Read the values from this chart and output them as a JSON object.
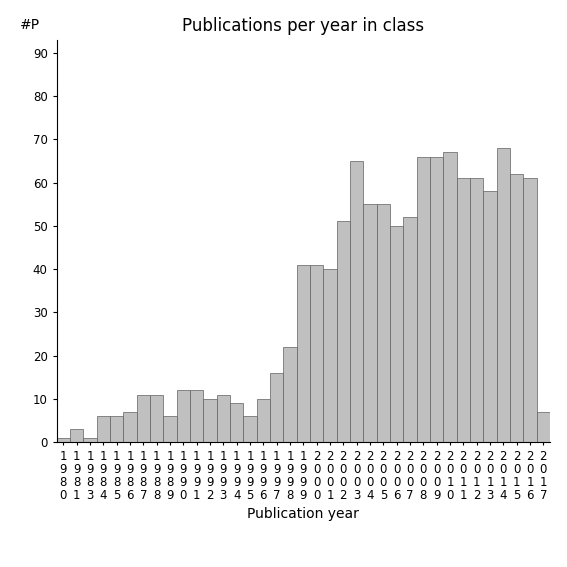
{
  "title": "Publications per year in class",
  "xlabel": "Publication year",
  "ylabel": "#P",
  "years": [
    "1980",
    "1981",
    "1983",
    "1984",
    "1985",
    "1986",
    "1987",
    "1988",
    "1989",
    "1990",
    "1991",
    "1992",
    "1993",
    "1994",
    "1995",
    "1996",
    "1997",
    "1998",
    "1999",
    "2000",
    "2001",
    "2002",
    "2003",
    "2004",
    "2005",
    "2006",
    "2007",
    "2008",
    "2009",
    "2010",
    "2011",
    "2012",
    "2013",
    "2014",
    "2015",
    "2016",
    "2017"
  ],
  "values": [
    1,
    3,
    1,
    6,
    6,
    7,
    11,
    11,
    6,
    12,
    12,
    10,
    11,
    9,
    6,
    10,
    16,
    22,
    41,
    41,
    40,
    51,
    65,
    55,
    55,
    50,
    52,
    66,
    66,
    67,
    61,
    61,
    58,
    68,
    62,
    61,
    7
  ],
  "bar_color": "#c0c0c0",
  "bar_edgecolor": "#606060",
  "ylim": [
    0,
    93
  ],
  "yticks": [
    0,
    10,
    20,
    30,
    40,
    50,
    60,
    70,
    80,
    90
  ],
  "bg_color": "#ffffff",
  "title_fontsize": 12,
  "axis_label_fontsize": 10,
  "tick_label_fontsize": 8.5
}
